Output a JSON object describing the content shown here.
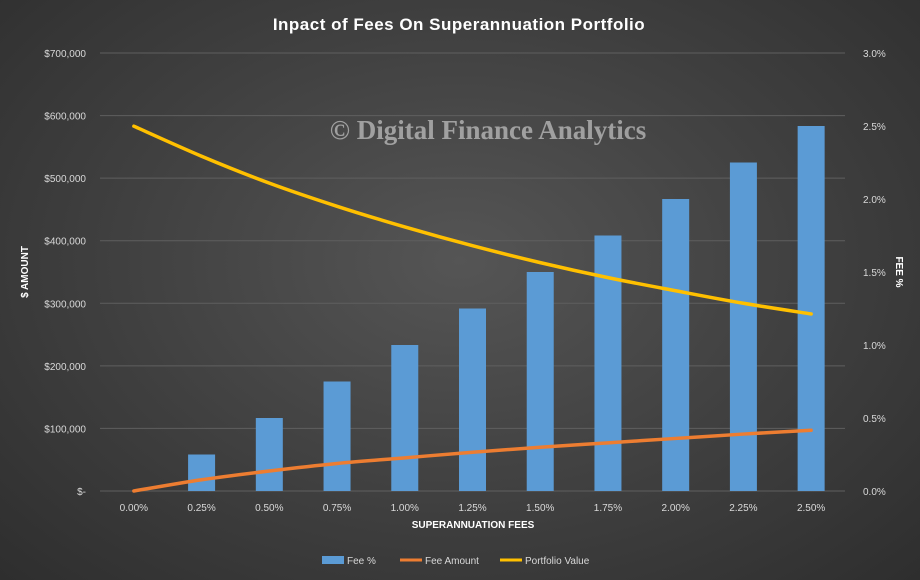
{
  "chart_data": {
    "type": "bar",
    "title": "Inpact of Fees On Superannuation Portfolio",
    "watermark": "© Digital Finance Analytics",
    "xlabel": "SUPERANNUATION FEES",
    "ylabel": "$ AMOUNT",
    "y2label": "FEE %",
    "categories": [
      "0.00%",
      "0.25%",
      "0.50%",
      "0.75%",
      "1.00%",
      "1.25%",
      "1.50%",
      "1.75%",
      "2.00%",
      "2.25%",
      "2.50%"
    ],
    "ylim": [
      0,
      700000
    ],
    "y2lim": [
      0,
      0.03
    ],
    "y_ticks": [
      "$-",
      "$100,000",
      "$200,000",
      "$300,000",
      "$400,000",
      "$500,000",
      "$600,000",
      "$700,000"
    ],
    "y2_ticks": [
      "0.0%",
      "0.5%",
      "1.0%",
      "1.5%",
      "2.0%",
      "2.5%",
      "3.0%"
    ],
    "grid": true,
    "legend_position": "bottom",
    "series": [
      {
        "name": "Fee %",
        "type": "bar",
        "axis": "right",
        "color": "#5b9bd5",
        "values": [
          0,
          0.0025,
          0.005,
          0.0075,
          0.01,
          0.0125,
          0.015,
          0.0175,
          0.02,
          0.0225,
          0.025
        ]
      },
      {
        "name": "Fee Amount",
        "type": "line",
        "axis": "left",
        "color": "#ed7d31",
        "values": [
          0,
          18000,
          32000,
          44000,
          53000,
          62000,
          70000,
          77000,
          84000,
          91000,
          97000
        ]
      },
      {
        "name": "Portfolio Value",
        "type": "line",
        "axis": "left",
        "color": "#ffc000",
        "values": [
          583000,
          535000,
          492000,
          455000,
          422000,
          392000,
          365000,
          341000,
          320000,
          300000,
          283000
        ]
      }
    ]
  }
}
